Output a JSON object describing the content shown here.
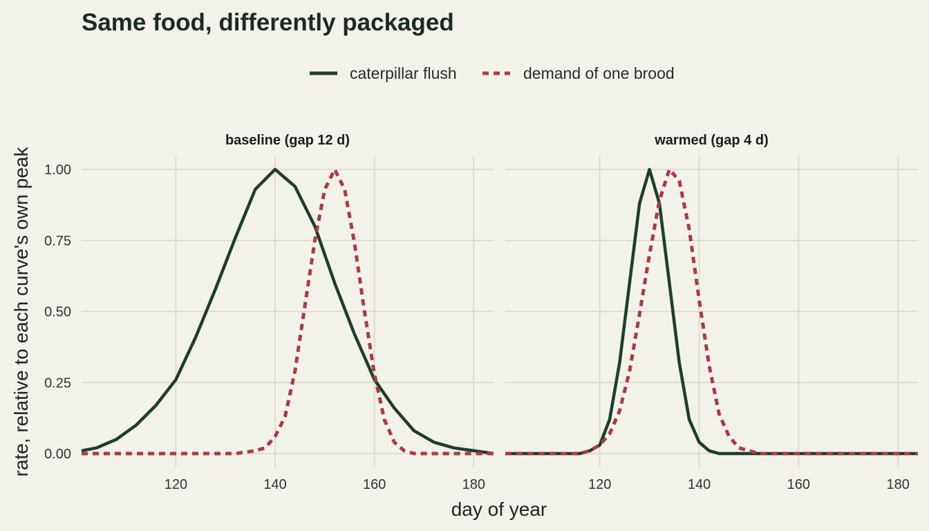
{
  "chart_data": {
    "type": "line",
    "title": "Same food, differently packaged",
    "xlabel": "day of year",
    "ylabel": "rate, relative to each curve's own peak",
    "legend": {
      "placement": "top",
      "entries": [
        {
          "label": "caterpillar flush",
          "color": "#1f3d2b",
          "dash": "solid"
        },
        {
          "label": "demand of one brood",
          "color": "#a83d3f",
          "dash": "dashed"
        }
      ]
    },
    "xlim": [
      101,
      184
    ],
    "ylim": [
      0,
      1
    ],
    "x_ticks": [
      120,
      140,
      160,
      180
    ],
    "y_ticks": [
      0,
      0.25,
      0.5,
      0.75,
      1
    ],
    "y_tick_labels": [
      "0.00",
      "0.25",
      "0.50",
      "0.75",
      "1.00"
    ],
    "grid": true,
    "panels": [
      {
        "label": "baseline (gap 12 d)",
        "series": [
          {
            "name": "caterpillar flush",
            "x": [
              101,
              104,
              108,
              112,
              116,
              120,
              124,
              128,
              132,
              136,
              140,
              144,
              148,
              152,
              156,
              160,
              164,
              168,
              172,
              176,
              180,
              184
            ],
            "y": [
              0.01,
              0.02,
              0.05,
              0.1,
              0.17,
              0.26,
              0.41,
              0.58,
              0.76,
              0.93,
              1.0,
              0.94,
              0.8,
              0.6,
              0.42,
              0.26,
              0.16,
              0.08,
              0.04,
              0.02,
              0.01,
              0.0
            ]
          },
          {
            "name": "demand of one brood",
            "x": [
              101,
              120,
              132,
              136,
              138,
              140,
              142,
              144,
              146,
              148,
              150,
              152,
              154,
              156,
              158,
              160,
              162,
              164,
              166,
              168,
              172,
              184
            ],
            "y": [
              0.0,
              0.0,
              0.0,
              0.01,
              0.02,
              0.06,
              0.13,
              0.29,
              0.52,
              0.75,
              0.93,
              1.0,
              0.93,
              0.74,
              0.5,
              0.28,
              0.12,
              0.04,
              0.01,
              0.0,
              0.0,
              0.0
            ]
          }
        ]
      },
      {
        "label": "warmed (gap 4 d)",
        "series": [
          {
            "name": "caterpillar flush",
            "x": [
              101,
              110,
              114,
              116,
              118,
              120,
              122,
              124,
              126,
              128,
              130,
              132,
              134,
              136,
              138,
              140,
              142,
              144,
              146,
              150,
              160,
              170,
              184
            ],
            "y": [
              0.0,
              0.0,
              0.0,
              0.0,
              0.01,
              0.03,
              0.12,
              0.32,
              0.6,
              0.88,
              1.0,
              0.88,
              0.6,
              0.32,
              0.12,
              0.04,
              0.01,
              0.0,
              0.0,
              0.0,
              0.0,
              0.0,
              0.0
            ]
          },
          {
            "name": "demand of one brood",
            "x": [
              101,
              110,
              114,
              116,
              118,
              120,
              122,
              124,
              126,
              128,
              130,
              132,
              134,
              136,
              138,
              140,
              142,
              144,
              146,
              148,
              150,
              152,
              156,
              160,
              184
            ],
            "y": [
              0.0,
              0.0,
              0.0,
              0.0,
              0.01,
              0.03,
              0.07,
              0.15,
              0.29,
              0.49,
              0.7,
              0.89,
              1.0,
              0.96,
              0.79,
              0.54,
              0.31,
              0.14,
              0.06,
              0.02,
              0.01,
              0.0,
              0.0,
              0.0,
              0.0
            ]
          }
        ]
      }
    ]
  }
}
